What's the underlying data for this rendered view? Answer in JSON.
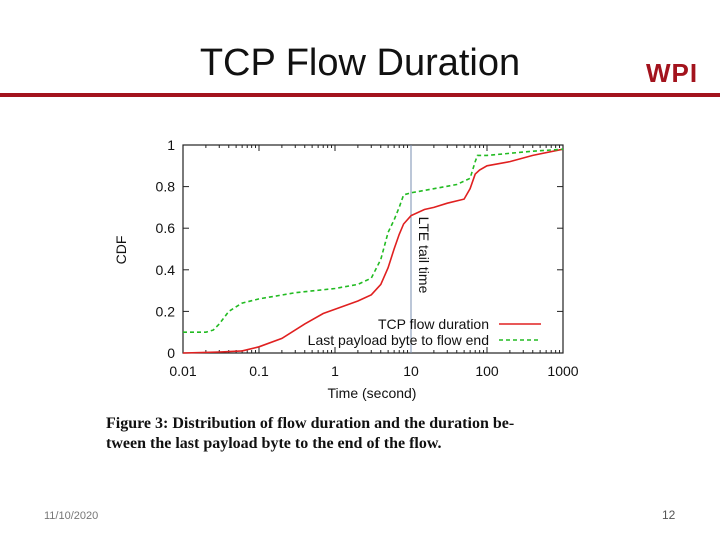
{
  "slide": {
    "title": "TCP Flow Duration",
    "logo_text": "WPI",
    "accent_color": "#a3131d",
    "footer_date": "11/10/2020",
    "page_number": "12",
    "caption_line1": "Figure 3:  Distribution of flow duration and the duration be-",
    "caption_line2": "tween the last payload byte to the end of the flow."
  },
  "chart_data": {
    "type": "line",
    "title": "",
    "xlabel": "Time (second)",
    "ylabel": "CDF",
    "xscale": "log",
    "xlim": [
      0.01,
      1000
    ],
    "ylim": [
      0,
      1
    ],
    "x_ticks": [
      0.01,
      0.1,
      1,
      10,
      100,
      1000
    ],
    "x_tick_labels": [
      "0.01",
      "0.1",
      "1",
      "10",
      "100",
      "1000"
    ],
    "y_ticks": [
      0,
      0.2,
      0.4,
      0.6,
      0.8,
      1
    ],
    "y_tick_labels": [
      "0",
      "0.2",
      "0.4",
      "0.6",
      "0.8",
      "1"
    ],
    "grid": false,
    "legend_position": "bottom-right",
    "annotation": {
      "text": "LTE tail time",
      "x": 10
    },
    "series": [
      {
        "name": "TCP flow duration",
        "color": "#e02020",
        "style": "solid",
        "points": [
          [
            0.01,
            0.0
          ],
          [
            0.03,
            0.005
          ],
          [
            0.06,
            0.01
          ],
          [
            0.1,
            0.03
          ],
          [
            0.2,
            0.07
          ],
          [
            0.4,
            0.14
          ],
          [
            0.7,
            0.19
          ],
          [
            1,
            0.21
          ],
          [
            2,
            0.25
          ],
          [
            3,
            0.28
          ],
          [
            4,
            0.33
          ],
          [
            5,
            0.41
          ],
          [
            6,
            0.5
          ],
          [
            7,
            0.57
          ],
          [
            8,
            0.62
          ],
          [
            10,
            0.66
          ],
          [
            15,
            0.69
          ],
          [
            20,
            0.7
          ],
          [
            30,
            0.72
          ],
          [
            50,
            0.74
          ],
          [
            60,
            0.79
          ],
          [
            70,
            0.86
          ],
          [
            80,
            0.88
          ],
          [
            100,
            0.9
          ],
          [
            200,
            0.92
          ],
          [
            400,
            0.95
          ],
          [
            1000,
            0.98
          ]
        ]
      },
      {
        "name": "Last payload byte to flow end",
        "color": "#22bb22",
        "style": "dashed",
        "points": [
          [
            0.01,
            0.1
          ],
          [
            0.02,
            0.1
          ],
          [
            0.025,
            0.11
          ],
          [
            0.03,
            0.14
          ],
          [
            0.04,
            0.2
          ],
          [
            0.06,
            0.24
          ],
          [
            0.1,
            0.26
          ],
          [
            0.3,
            0.29
          ],
          [
            1,
            0.31
          ],
          [
            2,
            0.33
          ],
          [
            3,
            0.36
          ],
          [
            4,
            0.45
          ],
          [
            5,
            0.58
          ],
          [
            6,
            0.64
          ],
          [
            7,
            0.7
          ],
          [
            8,
            0.76
          ],
          [
            10,
            0.77
          ],
          [
            20,
            0.79
          ],
          [
            40,
            0.81
          ],
          [
            60,
            0.84
          ],
          [
            70,
            0.92
          ],
          [
            75,
            0.95
          ],
          [
            100,
            0.95
          ],
          [
            200,
            0.96
          ],
          [
            400,
            0.97
          ],
          [
            1000,
            0.98
          ]
        ]
      }
    ]
  }
}
